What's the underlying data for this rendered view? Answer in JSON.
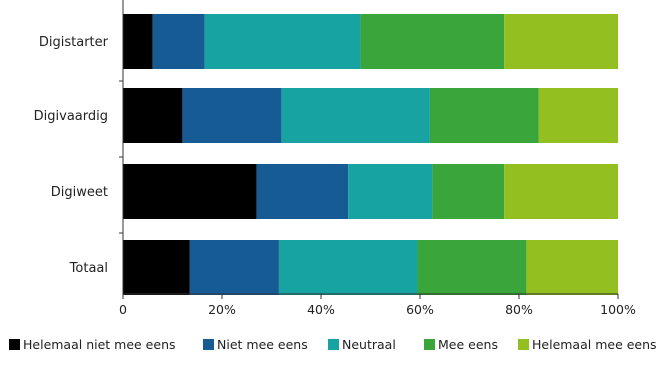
{
  "chart_data": {
    "type": "bar",
    "orientation": "horizontal",
    "stacked": true,
    "percent": true,
    "categories": [
      "Digistarter",
      "Digivaardig",
      "Digiweet",
      "Totaal"
    ],
    "series": [
      {
        "name": "Helemaal niet mee eens",
        "color": "#000000",
        "values": [
          6,
          12,
          27,
          13.5
        ]
      },
      {
        "name": "Niet mee eens",
        "color": "#175b95",
        "values": [
          10.5,
          20,
          18.5,
          18
        ]
      },
      {
        "name": "Neutraal",
        "color": "#16a3a1",
        "values": [
          31.5,
          30,
          17,
          28
        ]
      },
      {
        "name": "Mee eens",
        "color": "#3aa53a",
        "values": [
          29,
          22,
          14.5,
          22
        ]
      },
      {
        "name": "Helemaal mee eens",
        "color": "#93bf21",
        "values": [
          23,
          16,
          23,
          18.5
        ]
      }
    ],
    "x_ticks": [
      "0",
      "20%",
      "40%",
      "60%",
      "80%",
      "100%"
    ],
    "xlim": [
      0,
      100
    ],
    "legend": "bottom"
  }
}
